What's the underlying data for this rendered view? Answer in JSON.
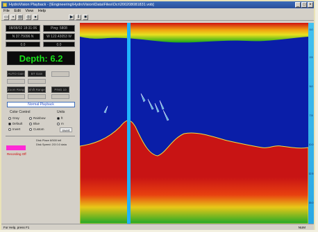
{
  "window": {
    "title": "HydroVision Playback - [\\Engineering\\HydroVision\\Data\\Files\\Ocr\\200208081831.vob]",
    "controls": [
      "_",
      "□",
      "×"
    ]
  },
  "menu": [
    "File",
    "Edit",
    "View",
    "Help"
  ],
  "toolbar": {
    "icons": [
      "open-icon",
      "save-icon",
      "print-icon",
      "camera-icon",
      "record-icon",
      "play-icon",
      "pause-icon",
      "stop-icon"
    ]
  },
  "panel": {
    "date": "08/08/02 18:31:06",
    "ping": "Ping: 5808",
    "latitude": "N  37.75096  N",
    "longitude": "W  122.43053  W",
    "row3_left": "0.0",
    "row3_right": "0.0",
    "depth_label": "Depth: 6.2",
    "auto_gain": "AUTO Gain",
    "bt_gain": "BT Gain",
    "zoom_range": "Zoom Range",
    "shift_range": "Shift Range",
    "ping_label": "PING  10",
    "banner": "Normal Playback",
    "color_control_title": "Color Control",
    "color_options": [
      "Gray",
      "Rainbow",
      "Default",
      "Blue",
      "Invert",
      "Custom"
    ],
    "units_title": "Units",
    "units_options": [
      "ft",
      "m"
    ],
    "invert_label": "Invert",
    "status_line1": "Disk Place 8/500 tell",
    "status_line2": "Disk Speed: 2/3 0.0 data",
    "red_status": "Recording Off"
  },
  "scale": {
    "labels": [
      "0.0",
      "2.5",
      "5.0",
      "7.5",
      "10.0",
      "12.5",
      "15.0"
    ]
  },
  "status_bar": {
    "left": "For Help, press F1",
    "right": "NUM"
  },
  "colors": {
    "water": "#0a1ea8",
    "bottom": "#c81414",
    "scale": "#2aa8e4",
    "depth_text": "#19e019"
  }
}
